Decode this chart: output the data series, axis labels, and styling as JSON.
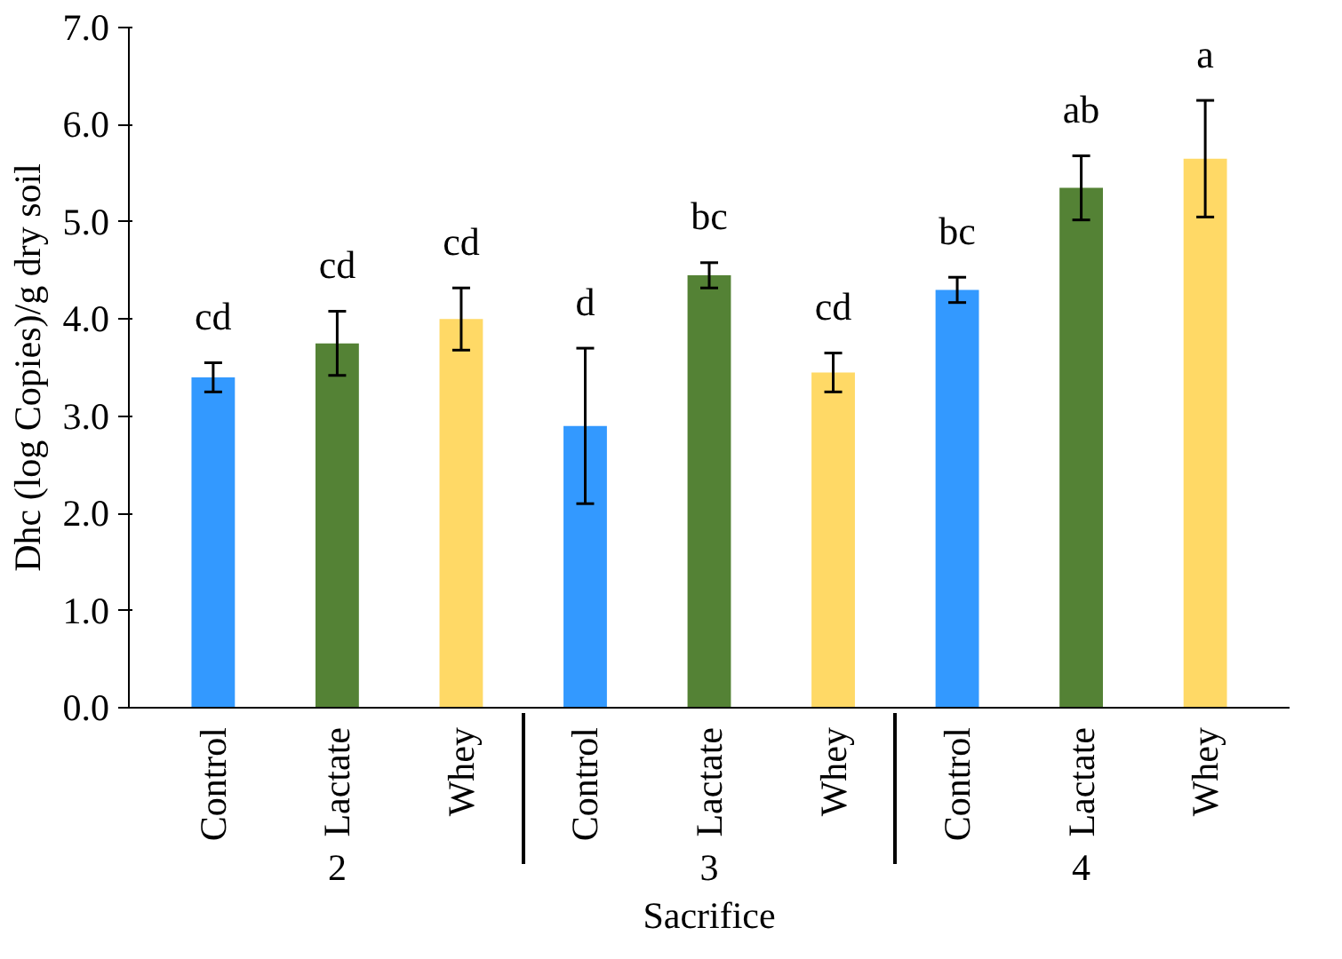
{
  "chart_data": {
    "type": "bar",
    "categories": [
      "Control",
      "Lactate",
      "Whey",
      "Control",
      "Lactate",
      "Whey",
      "Control",
      "Lactate",
      "Whey"
    ],
    "values": [
      3.4,
      3.75,
      4.0,
      2.9,
      4.45,
      3.45,
      4.3,
      5.35,
      5.65
    ],
    "errors": [
      0.15,
      0.33,
      0.32,
      0.8,
      0.13,
      0.2,
      0.13,
      0.33,
      0.6
    ],
    "colors": [
      "#3399ff",
      "#548235",
      "#ffd966",
      "#3399ff",
      "#548235",
      "#ffd966",
      "#3399ff",
      "#548235",
      "#ffd966"
    ],
    "xlabel": "Sacrifice",
    "ylabel": "Dhc (log Copies)/g dry soil",
    "annotations": [
      "cd",
      "cd",
      "cd",
      "d",
      "bc",
      "cd",
      "bc",
      "ab",
      "a",
      "2",
      "3",
      "4"
    ],
    "ylim": [
      0,
      7
    ],
    "yticks": [
      {
        "value": 0,
        "label": "0.0"
      },
      {
        "value": 1,
        "label": "1.0"
      },
      {
        "value": 2,
        "label": "2.0"
      },
      {
        "value": 3,
        "label": "3.0"
      },
      {
        "value": 4,
        "label": "4.0"
      },
      {
        "value": 5,
        "label": "5.0"
      },
      {
        "value": 6,
        "label": "6.0"
      },
      {
        "value": 7,
        "label": "7.0"
      }
    ],
    "grid": false
  }
}
